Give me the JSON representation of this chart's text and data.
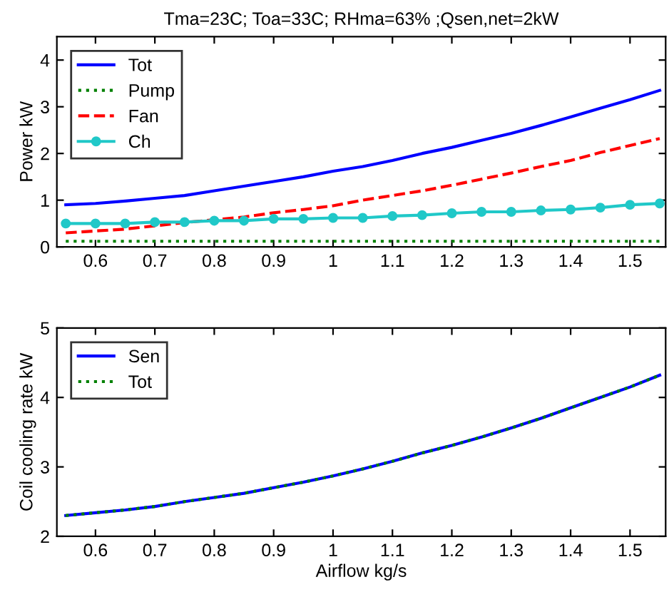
{
  "chart_data": [
    {
      "type": "line",
      "title": "Tma=23C; Toa=33C; RHma=63% ;Qsen,net=2kW",
      "ylabel": "Power kW",
      "x": [
        0.55,
        0.6,
        0.65,
        0.7,
        0.75,
        0.8,
        0.85,
        0.9,
        0.95,
        1.0,
        1.05,
        1.1,
        1.15,
        1.2,
        1.25,
        1.3,
        1.35,
        1.4,
        1.45,
        1.5,
        1.55
      ],
      "xlim": [
        0.535,
        1.56
      ],
      "xticks": [
        0.6,
        0.7,
        0.8,
        0.9,
        1,
        1.1,
        1.2,
        1.3,
        1.4,
        1.5
      ],
      "ylim": [
        0,
        4.5
      ],
      "yticks": [
        0,
        1,
        2,
        3,
        4
      ],
      "grid": false,
      "legend": "top left",
      "series": [
        {
          "name": "Tot",
          "color": "#0000ff",
          "line_style": "solid",
          "marker": "none",
          "values": [
            0.9,
            0.93,
            0.98,
            1.04,
            1.1,
            1.2,
            1.3,
            1.4,
            1.5,
            1.62,
            1.72,
            1.85,
            2.0,
            2.13,
            2.28,
            2.43,
            2.6,
            2.78,
            2.97,
            3.15,
            3.35
          ]
        },
        {
          "name": "Pump",
          "color": "#008000",
          "line_style": "dotted",
          "marker": "none",
          "values": [
            0.12,
            0.12,
            0.12,
            0.12,
            0.12,
            0.12,
            0.12,
            0.12,
            0.12,
            0.12,
            0.12,
            0.12,
            0.12,
            0.12,
            0.12,
            0.12,
            0.12,
            0.12,
            0.12,
            0.12,
            0.12
          ]
        },
        {
          "name": "Fan",
          "color": "#ff0000",
          "line_style": "dashed",
          "marker": "none",
          "values": [
            0.3,
            0.34,
            0.38,
            0.45,
            0.52,
            0.58,
            0.64,
            0.73,
            0.8,
            0.88,
            1.0,
            1.1,
            1.2,
            1.32,
            1.45,
            1.58,
            1.72,
            1.85,
            2.02,
            2.17,
            2.32
          ]
        },
        {
          "name": "Ch",
          "color": "#20c8c8",
          "line_style": "solid",
          "marker": "circle",
          "values": [
            0.5,
            0.5,
            0.5,
            0.53,
            0.53,
            0.56,
            0.56,
            0.6,
            0.6,
            0.62,
            0.62,
            0.66,
            0.68,
            0.72,
            0.75,
            0.75,
            0.78,
            0.8,
            0.84,
            0.9,
            0.93
          ]
        }
      ]
    },
    {
      "type": "line",
      "xlabel": "Airflow kg/s",
      "ylabel": "Coil cooling rate kW",
      "x": [
        0.55,
        0.6,
        0.65,
        0.7,
        0.75,
        0.8,
        0.85,
        0.9,
        0.95,
        1.0,
        1.05,
        1.1,
        1.15,
        1.2,
        1.25,
        1.3,
        1.35,
        1.4,
        1.45,
        1.5,
        1.55
      ],
      "xlim": [
        0.535,
        1.56
      ],
      "xticks": [
        0.6,
        0.7,
        0.8,
        0.9,
        1,
        1.1,
        1.2,
        1.3,
        1.4,
        1.5
      ],
      "ylim": [
        2,
        5
      ],
      "yticks": [
        2,
        3,
        4,
        5
      ],
      "grid": false,
      "legend": "top left",
      "series": [
        {
          "name": "Sen",
          "color": "#0000ff",
          "line_style": "solid",
          "marker": "none",
          "values": [
            2.3,
            2.34,
            2.38,
            2.43,
            2.5,
            2.56,
            2.62,
            2.7,
            2.78,
            2.87,
            2.97,
            3.08,
            3.2,
            3.31,
            3.43,
            3.56,
            3.7,
            3.85,
            4.0,
            4.15,
            4.32
          ]
        },
        {
          "name": "Tot",
          "color": "#008000",
          "line_style": "dotted",
          "marker": "none",
          "values": [
            2.3,
            2.34,
            2.38,
            2.43,
            2.5,
            2.56,
            2.62,
            2.7,
            2.78,
            2.87,
            2.97,
            3.08,
            3.2,
            3.31,
            3.43,
            3.56,
            3.7,
            3.85,
            4.0,
            4.15,
            4.32
          ]
        }
      ]
    }
  ]
}
